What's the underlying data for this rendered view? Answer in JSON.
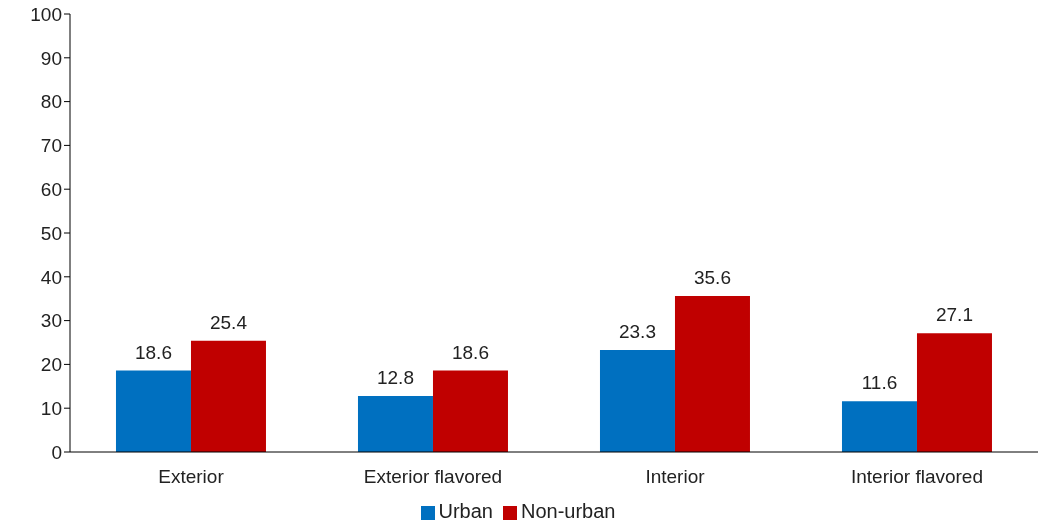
{
  "chart_data": {
    "type": "bar",
    "categories": [
      "Exterior",
      "Exterior flavored",
      "Interior",
      "Interior flavored"
    ],
    "series": [
      {
        "name": "Urban",
        "color": "#0070c0",
        "values": [
          18.6,
          12.8,
          23.3,
          11.6
        ]
      },
      {
        "name": "Non-urban",
        "color": "#c00000",
        "values": [
          25.4,
          18.6,
          35.6,
          27.1
        ]
      }
    ],
    "ylim": [
      0,
      100
    ],
    "yticks": [
      0,
      10,
      20,
      30,
      40,
      50,
      60,
      70,
      80,
      90,
      100
    ],
    "data_labels": true,
    "legend": "bottom"
  }
}
